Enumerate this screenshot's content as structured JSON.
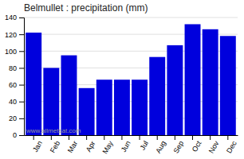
{
  "chart_data": {
    "type": "bar",
    "title": "Belmullet : precipitation (mm)",
    "categories": [
      "Jan",
      "Feb",
      "Mar",
      "Apr",
      "May",
      "Jun",
      "Jul",
      "Aug",
      "Sep",
      "Oct",
      "Nov",
      "Dec"
    ],
    "values": [
      122,
      80,
      95,
      56,
      66,
      66,
      66,
      93,
      107,
      132,
      126,
      118
    ],
    "color": "#0000dd",
    "ylim": [
      0,
      140
    ],
    "yticks": [
      0,
      20,
      40,
      60,
      80,
      100,
      120,
      140
    ],
    "grid": true,
    "annotations": [
      "www.allmetsat.com"
    ]
  }
}
